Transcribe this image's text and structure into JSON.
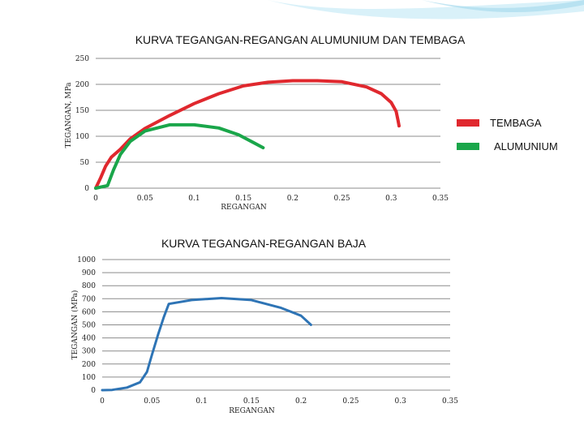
{
  "colors": {
    "copper": "#e0282e",
    "aluminium": "#1aa64a",
    "steel": "#2e74b5",
    "grid": "#8c8c8c",
    "background_swoosh": "#b8e4f0"
  },
  "chart_data": [
    {
      "type": "line",
      "title": "KURVA TEGANGAN-REGANGAN ALUMUNIUM DAN TEMBAGA",
      "xlabel": "REGANGAN",
      "ylabel": "TEGANGAN, MPa",
      "xlim": [
        0,
        0.35
      ],
      "ylim": [
        0,
        250
      ],
      "x_ticks": [
        "0",
        "0.05",
        "0.1",
        "0.15",
        "0.2",
        "0.25",
        "0.3",
        "0.35"
      ],
      "y_ticks": [
        "0",
        "50",
        "100",
        "150",
        "200",
        "250"
      ],
      "grid": "horizontal",
      "legend_position": "right",
      "series": [
        {
          "name": "TEMBAGA",
          "color": "#e0282e",
          "points": [
            [
              0.0,
              0
            ],
            [
              0.005,
              20
            ],
            [
              0.01,
              42
            ],
            [
              0.016,
              60
            ],
            [
              0.025,
              75
            ],
            [
              0.035,
              95
            ],
            [
              0.05,
              115
            ],
            [
              0.075,
              140
            ],
            [
              0.1,
              163
            ],
            [
              0.125,
              182
            ],
            [
              0.15,
              197
            ],
            [
              0.175,
              204
            ],
            [
              0.2,
              207
            ],
            [
              0.225,
              207
            ],
            [
              0.25,
              205
            ],
            [
              0.275,
              195
            ],
            [
              0.29,
              182
            ],
            [
              0.3,
              165
            ],
            [
              0.305,
              148
            ],
            [
              0.307,
              130
            ],
            [
              0.308,
              120
            ]
          ]
        },
        {
          "name": "ALUMUNIUM",
          "color": "#1aa64a",
          "points": [
            [
              0.0,
              0
            ],
            [
              0.012,
              5
            ],
            [
              0.018,
              35
            ],
            [
              0.025,
              65
            ],
            [
              0.035,
              90
            ],
            [
              0.05,
              110
            ],
            [
              0.075,
              122
            ],
            [
              0.1,
              122
            ],
            [
              0.125,
              116
            ],
            [
              0.145,
              103
            ],
            [
              0.16,
              88
            ],
            [
              0.17,
              78
            ]
          ]
        }
      ]
    },
    {
      "type": "line",
      "title": "KURVA TEGANGAN-REGANGAN BAJA",
      "xlabel": "REGANGAN",
      "ylabel": "TEGANGAN (MPa)",
      "xlim": [
        0,
        0.35
      ],
      "ylim": [
        0,
        1000
      ],
      "x_ticks": [
        "0",
        "0.05",
        "0.1",
        "0.15",
        "0.2",
        "0.25",
        "0.3",
        "0.35"
      ],
      "y_ticks": [
        "0",
        "100",
        "200",
        "300",
        "400",
        "500",
        "600",
        "700",
        "800",
        "900",
        "1000"
      ],
      "grid": "horizontal",
      "series": [
        {
          "name": "",
          "color": "#2e74b5",
          "points": [
            [
              0.0,
              0
            ],
            [
              0.01,
              2
            ],
            [
              0.025,
              20
            ],
            [
              0.038,
              60
            ],
            [
              0.045,
              140
            ],
            [
              0.05,
              270
            ],
            [
              0.056,
              420
            ],
            [
              0.062,
              560
            ],
            [
              0.067,
              660
            ],
            [
              0.09,
              690
            ],
            [
              0.12,
              705
            ],
            [
              0.15,
              690
            ],
            [
              0.18,
              630
            ],
            [
              0.2,
              570
            ],
            [
              0.21,
              500
            ]
          ]
        }
      ]
    }
  ]
}
